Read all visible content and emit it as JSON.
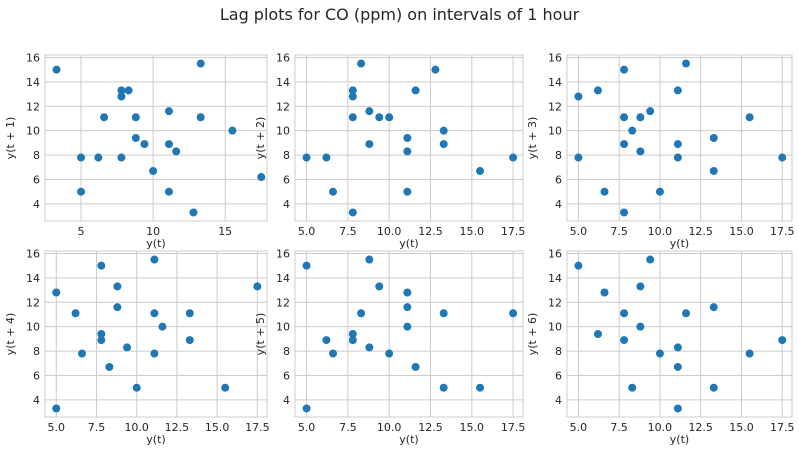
{
  "figure": {
    "title": "Lag plots for CO (ppm) on intervals of 1 hour"
  },
  "colors": {
    "marker": "#1f77b4",
    "grid": "#cccccc",
    "plot_background": "#ffffff",
    "axis_text": "#262626"
  },
  "chart_data": [
    {
      "type": "scatter",
      "xlabel": "y(t)",
      "ylabel": "y(t + 1)",
      "grid": true,
      "xlim": [
        2.5,
        17.9
      ],
      "ylim": [
        2.6,
        16.2
      ],
      "x_ticks": [
        5,
        10,
        15
      ],
      "x_tick_labels": [
        "5",
        "10",
        "15"
      ],
      "y_ticks": [
        4,
        6,
        8,
        10,
        12,
        14,
        16
      ],
      "y_tick_labels": [
        "4",
        "6",
        "8",
        "10",
        "12",
        "14",
        "16"
      ],
      "points": [
        {
          "x": 3.3,
          "y": 15.0
        },
        {
          "x": 5.0,
          "y": 7.8
        },
        {
          "x": 5.0,
          "y": 5.0
        },
        {
          "x": 6.2,
          "y": 7.8
        },
        {
          "x": 6.6,
          "y": 11.1
        },
        {
          "x": 7.8,
          "y": 13.3
        },
        {
          "x": 7.8,
          "y": 12.8
        },
        {
          "x": 7.8,
          "y": 7.8
        },
        {
          "x": 8.3,
          "y": 13.3
        },
        {
          "x": 8.8,
          "y": 11.1
        },
        {
          "x": 8.8,
          "y": 9.4
        },
        {
          "x": 9.4,
          "y": 8.9
        },
        {
          "x": 10.0,
          "y": 6.7
        },
        {
          "x": 11.1,
          "y": 11.6
        },
        {
          "x": 11.1,
          "y": 8.9
        },
        {
          "x": 11.1,
          "y": 5.0
        },
        {
          "x": 11.6,
          "y": 8.3
        },
        {
          "x": 12.8,
          "y": 3.3
        },
        {
          "x": 13.3,
          "y": 15.5
        },
        {
          "x": 13.3,
          "y": 11.1
        },
        {
          "x": 15.5,
          "y": 10.0
        },
        {
          "x": 17.5,
          "y": 6.2
        }
      ]
    },
    {
      "type": "scatter",
      "xlabel": "y(t)",
      "ylabel": "y(t + 2)",
      "grid": true,
      "xlim": [
        4.3,
        18.1
      ],
      "ylim": [
        2.6,
        16.2
      ],
      "x_ticks": [
        5.0,
        7.5,
        10.0,
        12.5,
        15.0,
        17.5
      ],
      "x_tick_labels": [
        "5.0",
        "7.5",
        "10.0",
        "12.5",
        "15.0",
        "17.5"
      ],
      "y_ticks": [
        4,
        6,
        8,
        10,
        12,
        14,
        16
      ],
      "y_tick_labels": [
        "4",
        "6",
        "8",
        "10",
        "12",
        "14",
        "16"
      ],
      "points": [
        {
          "x": 5.0,
          "y": 7.8
        },
        {
          "x": 6.2,
          "y": 7.8
        },
        {
          "x": 6.6,
          "y": 5.0
        },
        {
          "x": 7.8,
          "y": 13.3
        },
        {
          "x": 7.8,
          "y": 12.8
        },
        {
          "x": 7.8,
          "y": 11.1
        },
        {
          "x": 7.8,
          "y": 3.3
        },
        {
          "x": 8.3,
          "y": 15.5
        },
        {
          "x": 8.8,
          "y": 11.6
        },
        {
          "x": 8.8,
          "y": 8.9
        },
        {
          "x": 9.4,
          "y": 11.1
        },
        {
          "x": 10.0,
          "y": 11.1
        },
        {
          "x": 11.1,
          "y": 9.4
        },
        {
          "x": 11.1,
          "y": 8.3
        },
        {
          "x": 11.1,
          "y": 5.0
        },
        {
          "x": 11.6,
          "y": 13.3
        },
        {
          "x": 12.8,
          "y": 15.0
        },
        {
          "x": 13.3,
          "y": 10.0
        },
        {
          "x": 13.3,
          "y": 8.9
        },
        {
          "x": 15.5,
          "y": 6.7
        },
        {
          "x": 17.5,
          "y": 7.8
        }
      ]
    },
    {
      "type": "scatter",
      "xlabel": "y(t)",
      "ylabel": "y(t + 3)",
      "grid": true,
      "xlim": [
        4.3,
        18.1
      ],
      "ylim": [
        2.6,
        16.2
      ],
      "x_ticks": [
        5.0,
        7.5,
        10.0,
        12.5,
        15.0,
        17.5
      ],
      "x_tick_labels": [
        "5.0",
        "7.5",
        "10.0",
        "12.5",
        "15.0",
        "17.5"
      ],
      "y_ticks": [
        4,
        6,
        8,
        10,
        12,
        14,
        16
      ],
      "y_tick_labels": [
        "4",
        "6",
        "8",
        "10",
        "12",
        "14",
        "16"
      ],
      "points": [
        {
          "x": 5.0,
          "y": 12.8
        },
        {
          "x": 5.0,
          "y": 7.8
        },
        {
          "x": 6.2,
          "y": 13.3
        },
        {
          "x": 6.6,
          "y": 5.0
        },
        {
          "x": 7.8,
          "y": 15.0
        },
        {
          "x": 7.8,
          "y": 11.1
        },
        {
          "x": 7.8,
          "y": 8.9
        },
        {
          "x": 7.8,
          "y": 3.3
        },
        {
          "x": 8.3,
          "y": 10.0
        },
        {
          "x": 8.8,
          "y": 11.1
        },
        {
          "x": 8.8,
          "y": 8.3
        },
        {
          "x": 9.4,
          "y": 11.6
        },
        {
          "x": 10.0,
          "y": 5.0
        },
        {
          "x": 11.1,
          "y": 13.3
        },
        {
          "x": 11.1,
          "y": 8.9
        },
        {
          "x": 11.1,
          "y": 7.8
        },
        {
          "x": 11.6,
          "y": 15.5
        },
        {
          "x": 13.3,
          "y": 9.4
        },
        {
          "x": 13.3,
          "y": 6.7
        },
        {
          "x": 15.5,
          "y": 11.1
        },
        {
          "x": 17.5,
          "y": 7.8
        }
      ]
    },
    {
      "type": "scatter",
      "xlabel": "y(t)",
      "ylabel": "y(t + 4)",
      "grid": true,
      "xlim": [
        4.3,
        18.1
      ],
      "ylim": [
        2.6,
        16.2
      ],
      "x_ticks": [
        5.0,
        7.5,
        10.0,
        12.5,
        15.0,
        17.5
      ],
      "x_tick_labels": [
        "5.0",
        "7.5",
        "10.0",
        "12.5",
        "15.0",
        "17.5"
      ],
      "y_ticks": [
        4,
        6,
        8,
        10,
        12,
        14,
        16
      ],
      "y_tick_labels": [
        "4",
        "6",
        "8",
        "10",
        "12",
        "14",
        "16"
      ],
      "points": [
        {
          "x": 5.0,
          "y": 12.8
        },
        {
          "x": 5.0,
          "y": 3.3
        },
        {
          "x": 6.2,
          "y": 11.1
        },
        {
          "x": 6.6,
          "y": 7.8
        },
        {
          "x": 7.8,
          "y": 15.0
        },
        {
          "x": 7.8,
          "y": 9.4
        },
        {
          "x": 7.8,
          "y": 8.9
        },
        {
          "x": 8.3,
          "y": 6.7
        },
        {
          "x": 8.8,
          "y": 13.3
        },
        {
          "x": 8.8,
          "y": 11.6
        },
        {
          "x": 9.4,
          "y": 8.3
        },
        {
          "x": 10.0,
          "y": 5.0
        },
        {
          "x": 11.1,
          "y": 15.5
        },
        {
          "x": 11.1,
          "y": 11.1
        },
        {
          "x": 11.1,
          "y": 7.8
        },
        {
          "x": 11.6,
          "y": 10.0
        },
        {
          "x": 13.3,
          "y": 11.1
        },
        {
          "x": 13.3,
          "y": 8.9
        },
        {
          "x": 15.5,
          "y": 5.0
        },
        {
          "x": 17.5,
          "y": 13.3
        }
      ]
    },
    {
      "type": "scatter",
      "xlabel": "y(t)",
      "ylabel": "y(t + 5)",
      "grid": true,
      "xlim": [
        4.3,
        18.1
      ],
      "ylim": [
        2.6,
        16.2
      ],
      "x_ticks": [
        5.0,
        7.5,
        10.0,
        12.5,
        15.0,
        17.5
      ],
      "x_tick_labels": [
        "5.0",
        "7.5",
        "10.0",
        "12.5",
        "15.0",
        "17.5"
      ],
      "y_ticks": [
        4,
        6,
        8,
        10,
        12,
        14,
        16
      ],
      "y_tick_labels": [
        "4",
        "6",
        "8",
        "10",
        "12",
        "14",
        "16"
      ],
      "points": [
        {
          "x": 5.0,
          "y": 15.0
        },
        {
          "x": 5.0,
          "y": 3.3
        },
        {
          "x": 6.2,
          "y": 8.9
        },
        {
          "x": 6.6,
          "y": 7.8
        },
        {
          "x": 7.8,
          "y": 9.4
        },
        {
          "x": 7.8,
          "y": 8.9
        },
        {
          "x": 8.3,
          "y": 11.1
        },
        {
          "x": 8.8,
          "y": 15.5
        },
        {
          "x": 8.8,
          "y": 8.3
        },
        {
          "x": 9.4,
          "y": 13.3
        },
        {
          "x": 10.0,
          "y": 7.8
        },
        {
          "x": 11.1,
          "y": 12.8
        },
        {
          "x": 11.1,
          "y": 11.6
        },
        {
          "x": 11.1,
          "y": 10.0
        },
        {
          "x": 11.6,
          "y": 6.7
        },
        {
          "x": 13.3,
          "y": 11.1
        },
        {
          "x": 13.3,
          "y": 5.0
        },
        {
          "x": 15.5,
          "y": 5.0
        },
        {
          "x": 17.5,
          "y": 11.1
        }
      ]
    },
    {
      "type": "scatter",
      "xlabel": "y(t)",
      "ylabel": "y(t + 6)",
      "grid": true,
      "xlim": [
        4.3,
        18.1
      ],
      "ylim": [
        2.6,
        16.2
      ],
      "x_ticks": [
        5.0,
        7.5,
        10.0,
        12.5,
        15.0,
        17.5
      ],
      "x_tick_labels": [
        "5.0",
        "7.5",
        "10.0",
        "12.5",
        "15.0",
        "17.5"
      ],
      "y_ticks": [
        4,
        6,
        8,
        10,
        12,
        14,
        16
      ],
      "y_tick_labels": [
        "4",
        "6",
        "8",
        "10",
        "12",
        "14",
        "16"
      ],
      "points": [
        {
          "x": 5.0,
          "y": 15.0
        },
        {
          "x": 6.2,
          "y": 9.4
        },
        {
          "x": 6.6,
          "y": 12.8
        },
        {
          "x": 7.8,
          "y": 11.1
        },
        {
          "x": 7.8,
          "y": 8.9
        },
        {
          "x": 8.3,
          "y": 5.0
        },
        {
          "x": 8.8,
          "y": 13.3
        },
        {
          "x": 8.8,
          "y": 10.0
        },
        {
          "x": 9.4,
          "y": 15.5
        },
        {
          "x": 10.0,
          "y": 7.8
        },
        {
          "x": 11.1,
          "y": 8.3
        },
        {
          "x": 11.1,
          "y": 6.7
        },
        {
          "x": 11.1,
          "y": 3.3
        },
        {
          "x": 11.6,
          "y": 11.1
        },
        {
          "x": 13.3,
          "y": 11.6
        },
        {
          "x": 13.3,
          "y": 5.0
        },
        {
          "x": 15.5,
          "y": 7.8
        },
        {
          "x": 17.5,
          "y": 8.9
        }
      ]
    }
  ]
}
